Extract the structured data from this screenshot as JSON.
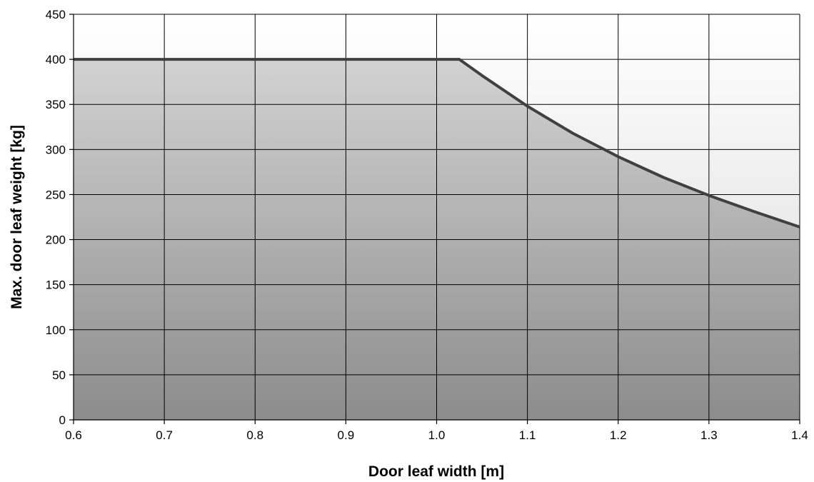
{
  "chart_data": {
    "type": "area",
    "title": "",
    "xlabel": "Door leaf width [m]",
    "ylabel": "Max. door leaf weight [kg]",
    "xlim": [
      0.6,
      1.4
    ],
    "ylim": [
      0,
      450
    ],
    "xticks": [
      "0.6",
      "0.7",
      "0.8",
      "0.9",
      "1.0",
      "1.1",
      "1.2",
      "1.3",
      "1.4"
    ],
    "yticks": [
      "0",
      "50",
      "100",
      "150",
      "200",
      "250",
      "300",
      "350",
      "400",
      "450"
    ],
    "grid": true,
    "legend": "none",
    "series": [
      {
        "x": [
          0.6,
          0.7,
          0.8,
          0.9,
          1.0,
          1.025,
          1.05,
          1.1,
          1.15,
          1.2,
          1.25,
          1.3,
          1.35,
          1.4
        ],
        "values": [
          400,
          400,
          400,
          400,
          400,
          400,
          382,
          348,
          318,
          292,
          269,
          249,
          231,
          214
        ]
      }
    ],
    "colors": {
      "line": "#404040",
      "fill_top": "#d2d2d2",
      "fill_bottom": "#8c8c8c",
      "bg_top": "#ffffff",
      "bg_bottom": "#d9d9d9",
      "grid": "#000000"
    }
  }
}
